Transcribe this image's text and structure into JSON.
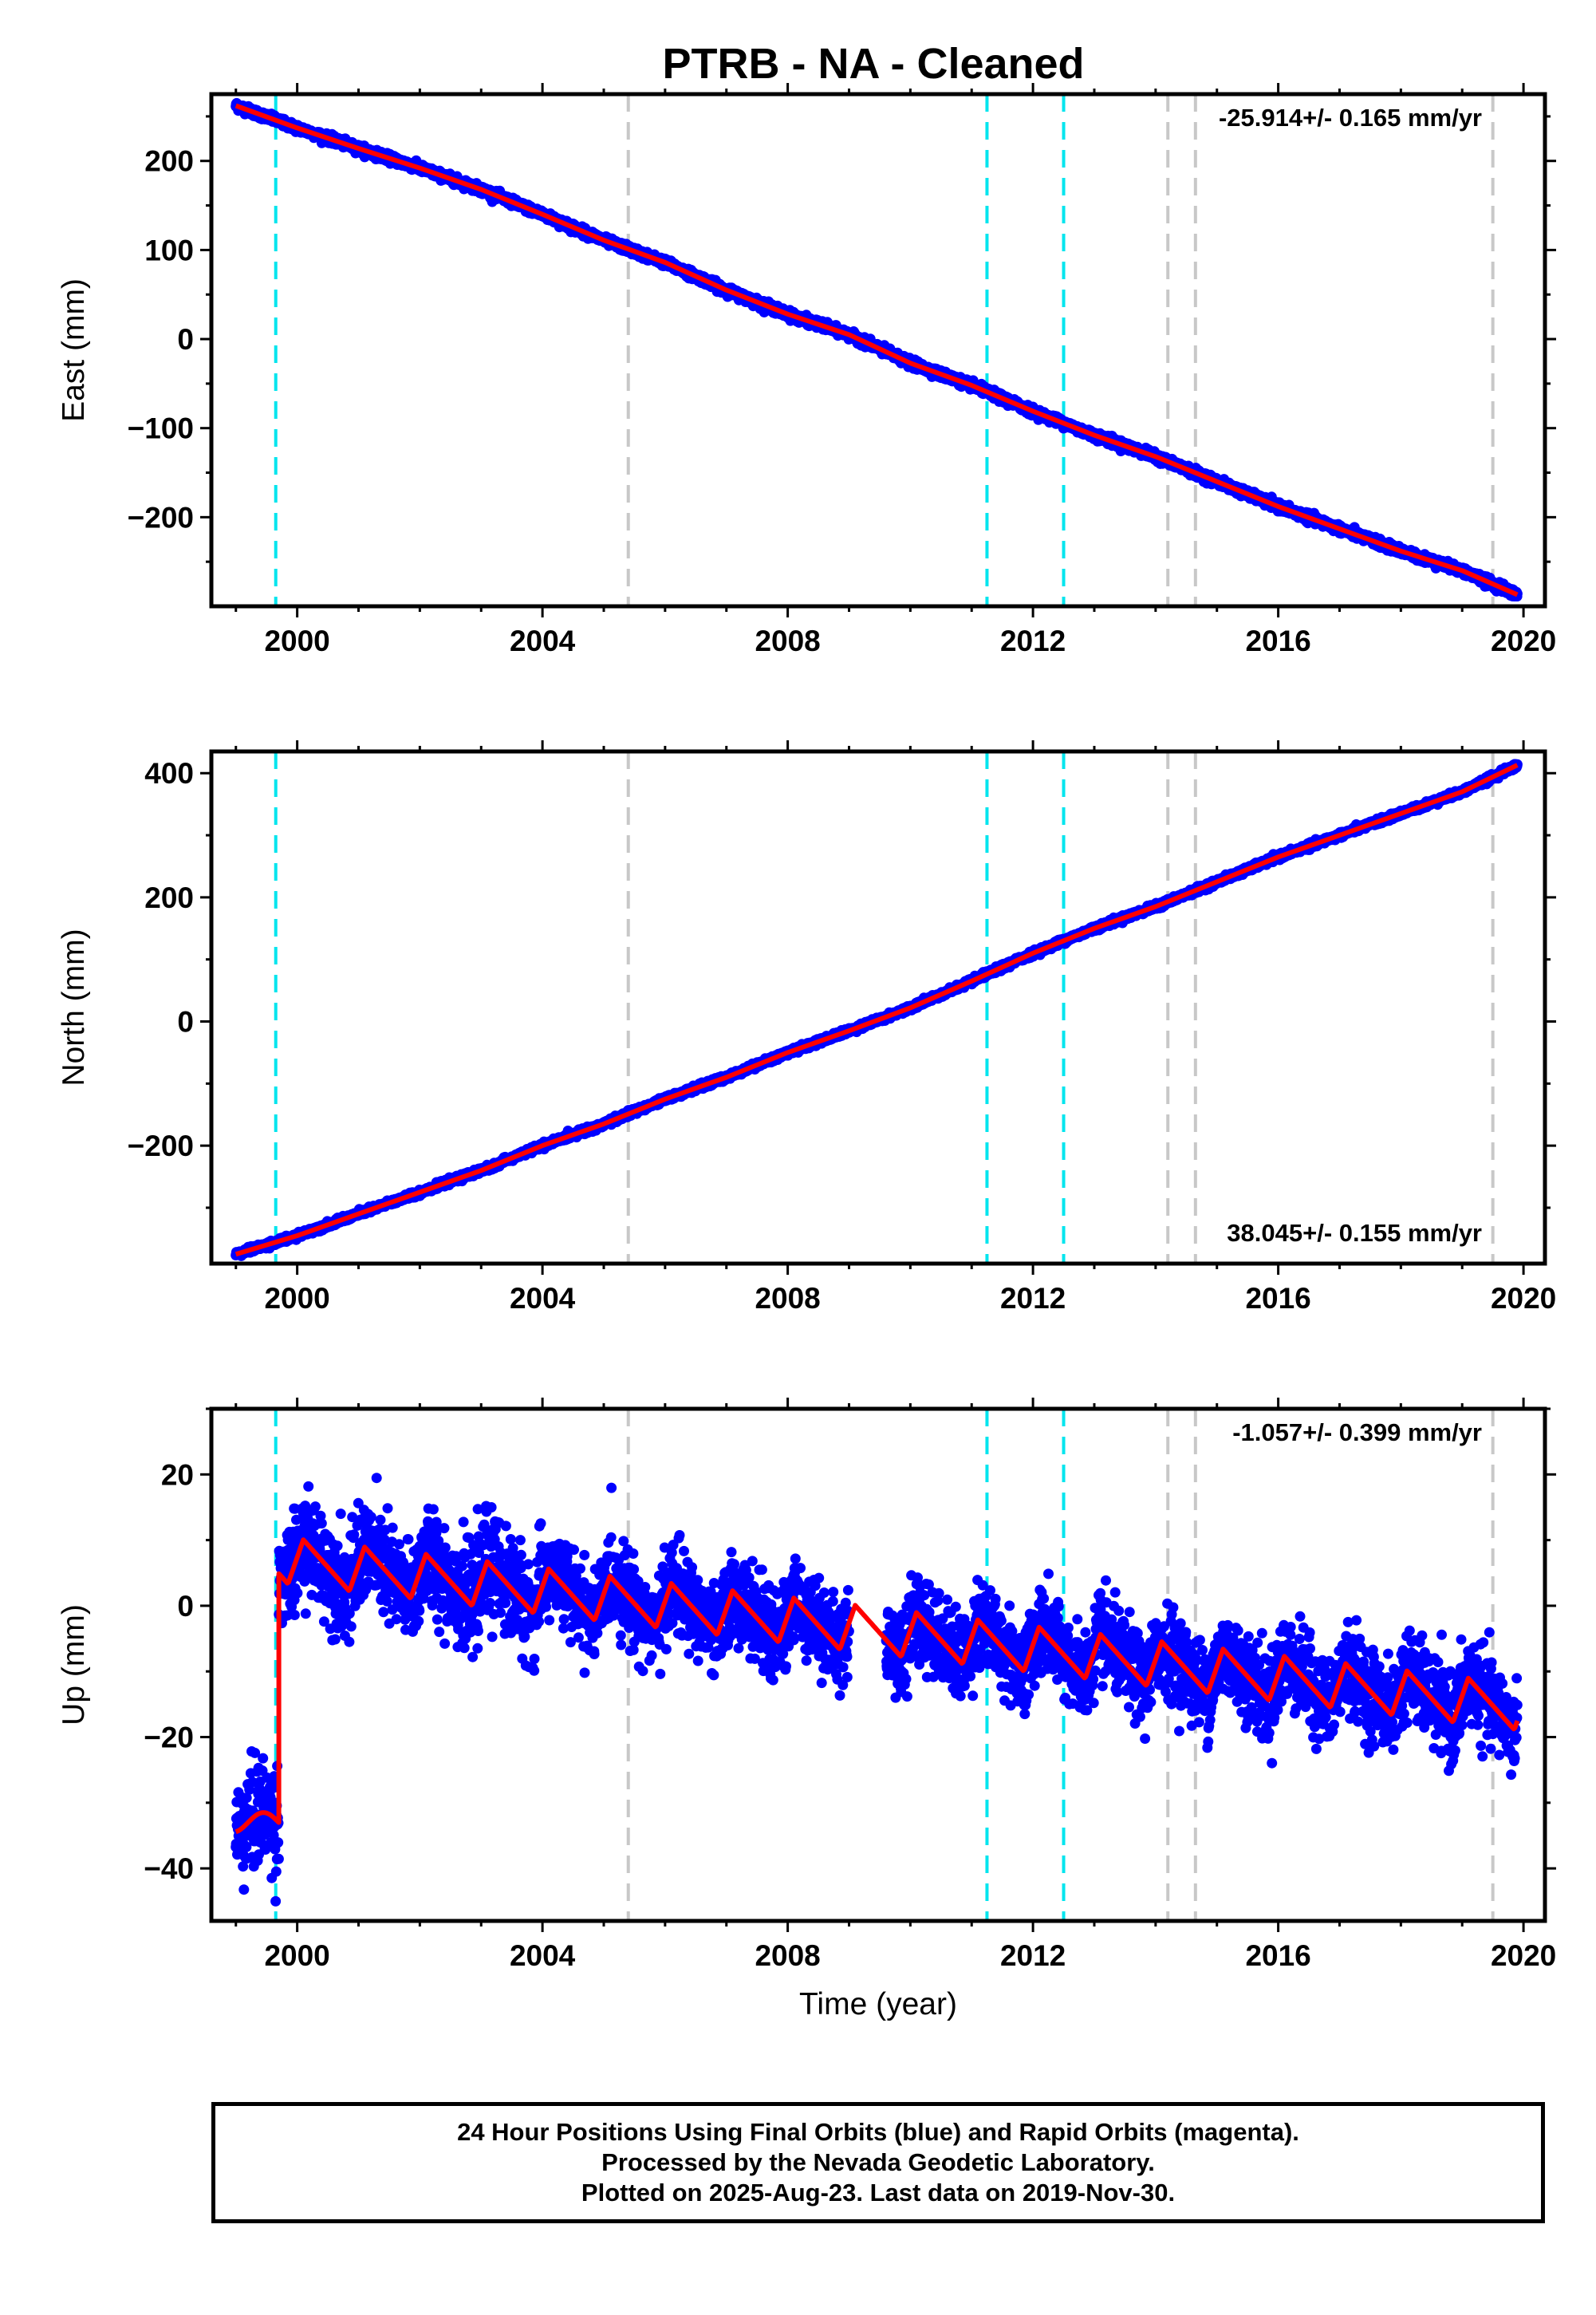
{
  "title": "PTRB  - NA - Cleaned",
  "x_axis": {
    "label": "Time (year)",
    "ticks": [
      2000,
      2004,
      2008,
      2012,
      2016,
      2020
    ],
    "tick_labels": [
      "2000",
      "2004",
      "2008",
      "2012",
      "2016",
      "2020"
    ],
    "range": [
      1998.6,
      2020.35
    ]
  },
  "colors": {
    "data_points": "#0000ff",
    "model_line": "#ff0000",
    "equipment_change": "#00e5ee",
    "other_event": "#c8c8c8"
  },
  "event_lines": [
    {
      "year": 1999.65,
      "color": "#00e5ee"
    },
    {
      "year": 2005.4,
      "color": "#c8c8c8"
    },
    {
      "year": 2011.25,
      "color": "#00e5ee"
    },
    {
      "year": 2012.5,
      "color": "#00e5ee"
    },
    {
      "year": 2014.2,
      "color": "#c8c8c8"
    },
    {
      "year": 2014.65,
      "color": "#c8c8c8"
    },
    {
      "year": 2019.5,
      "color": "#c8c8c8"
    }
  ],
  "chart_data": [
    {
      "type": "scatter",
      "id": "east",
      "ylabel": "East (mm)",
      "ylim": [
        -300,
        275
      ],
      "yticks": [
        -200,
        -100,
        0,
        100,
        200
      ],
      "ytick_labels": [
        "−200",
        "−100",
        "0",
        "100",
        "200"
      ],
      "rate_label": "-25.914+/- 0.165 mm/yr",
      "rate_position": "top-right",
      "x": [
        1999.0,
        2000.0,
        2001.0,
        2002.0,
        2003.0,
        2004.0,
        2005.0,
        2006.0,
        2007.0,
        2008.0,
        2009.0,
        2010.0,
        2011.0,
        2012.0,
        2013.0,
        2014.0,
        2015.0,
        2016.0,
        2017.0,
        2018.0,
        2019.0,
        2019.9
      ],
      "series": [
        {
          "values": [
            262,
            237,
            214,
            192,
            168,
            140,
            111,
            86,
            55,
            28,
            5,
            -27,
            -52,
            -81,
            -108,
            -132,
            -160,
            -188,
            -213,
            -238,
            -260,
            -287
          ]
        }
      ]
    },
    {
      "type": "scatter",
      "id": "north",
      "ylabel": "North (mm)",
      "ylim": [
        -390,
        435
      ],
      "yticks": [
        -200,
        0,
        200,
        400
      ],
      "ytick_labels": [
        "−200",
        "0",
        "200",
        "400"
      ],
      "rate_label": "38.045+/- 0.155 mm/yr",
      "rate_position": "bottom-right",
      "x": [
        1999.0,
        2000.0,
        2001.0,
        2002.0,
        2003.0,
        2004.0,
        2005.0,
        2006.0,
        2007.0,
        2008.0,
        2009.0,
        2010.0,
        2011.0,
        2012.0,
        2013.0,
        2014.0,
        2015.0,
        2016.0,
        2017.0,
        2018.0,
        2019.0,
        2019.9
      ],
      "series": [
        {
          "values": [
            -375,
            -345,
            -310,
            -275,
            -240,
            -200,
            -165,
            -125,
            -90,
            -50,
            -15,
            22,
            65,
            110,
            150,
            185,
            225,
            265,
            300,
            335,
            370,
            413
          ]
        }
      ]
    },
    {
      "type": "scatter",
      "id": "up",
      "ylabel": "Up (mm)",
      "ylim": [
        -48,
        30
      ],
      "yticks": [
        -40,
        -20,
        0,
        20
      ],
      "ytick_labels": [
        "−40",
        "−20",
        "0",
        "20"
      ],
      "rate_label": "-1.057+/- 0.399 mm/yr",
      "rate_position": "top-right",
      "offset_year": 1999.7,
      "pre_offset_level": -33,
      "offset_size": 44,
      "trend_mm_per_yr": -1.057,
      "annual_amplitude_mm": 3.5,
      "x_start": 1999.0,
      "x_end": 2019.9,
      "gap": [
        2009.0,
        2009.6
      ]
    }
  ],
  "footer": {
    "line1": "24 Hour Positions Using Final Orbits (blue) and Rapid Orbits (magenta).",
    "line2": "Processed by the Nevada Geodetic Laboratory.",
    "line3": "Plotted on 2025-Aug-23. Last data on 2019-Nov-30."
  }
}
